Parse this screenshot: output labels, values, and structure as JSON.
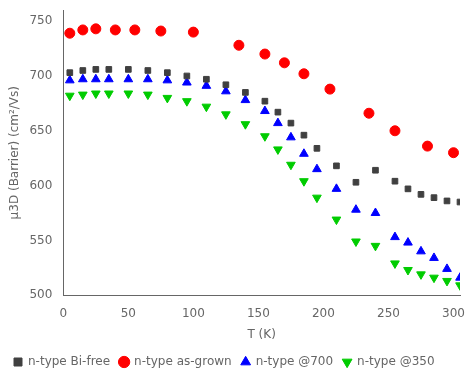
{
  "chart_data": {
    "type": "scatter",
    "xlabel": "T (K)",
    "ylabel": "μ3D (Barrier) (cm²/Vs)",
    "xlim": [
      0,
      305
    ],
    "ylim": [
      500,
      760
    ],
    "xticks": [
      0,
      50,
      100,
      150,
      200,
      250,
      300
    ],
    "yticks": [
      500,
      550,
      600,
      650,
      700,
      750
    ],
    "grid": false,
    "legend": "lower left",
    "series": [
      {
        "name": "n-type Bi-free",
        "color": "#404040",
        "marker": "square",
        "x": [
          5,
          15,
          25,
          35,
          50,
          65,
          80,
          95,
          110,
          125,
          140,
          155,
          165,
          175,
          185,
          195,
          210,
          225,
          240,
          255,
          265,
          275,
          285,
          295,
          305
        ],
        "values": [
          703,
          705,
          706,
          706,
          706,
          705,
          703,
          700,
          697,
          692,
          685,
          677,
          667,
          657,
          646,
          634,
          618,
          603,
          614,
          604,
          597,
          592,
          589,
          586,
          585
        ]
      },
      {
        "name": "n-type as-grown",
        "color": "#ff0000",
        "marker": "circle",
        "x": [
          5,
          15,
          25,
          40,
          55,
          75,
          100,
          135,
          155,
          170,
          185,
          205,
          235,
          255,
          280,
          300
        ],
        "values": [
          739,
          742,
          743,
          742,
          742,
          741,
          740,
          728,
          720,
          712,
          702,
          688,
          666,
          650,
          636,
          630
        ]
      },
      {
        "name": "n-type @700",
        "color": "#0000ff",
        "marker": "triangle-up",
        "x": [
          5,
          15,
          25,
          35,
          50,
          65,
          80,
          95,
          110,
          125,
          140,
          155,
          165,
          175,
          185,
          195,
          210,
          225,
          240,
          255,
          265,
          275,
          285,
          295,
          305
        ],
        "values": [
          696,
          697,
          697,
          697,
          697,
          697,
          696,
          694,
          691,
          686,
          678,
          668,
          657,
          644,
          629,
          615,
          597,
          578,
          575,
          553,
          548,
          540,
          534,
          524,
          516
        ]
      },
      {
        "name": "n-type @350",
        "color": "#00cc00",
        "marker": "triangle-down",
        "x": [
          5,
          15,
          25,
          35,
          50,
          65,
          80,
          95,
          110,
          125,
          140,
          155,
          165,
          175,
          185,
          195,
          210,
          225,
          240,
          255,
          265,
          275,
          285,
          295,
          305
        ],
        "values": [
          682,
          683,
          684,
          684,
          684,
          683,
          680,
          677,
          672,
          665,
          656,
          645,
          633,
          619,
          604,
          589,
          569,
          549,
          545,
          529,
          523,
          519,
          516,
          513,
          509
        ]
      }
    ]
  }
}
